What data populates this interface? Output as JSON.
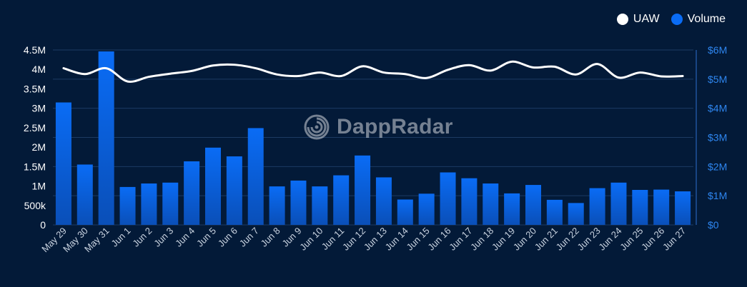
{
  "chart_data": {
    "type": "bar",
    "title": "",
    "categories": [
      "May 29",
      "May 30",
      "May 31",
      "Jun 1",
      "Jun 2",
      "Jun 3",
      "Jun 4",
      "Jun 5",
      "Jun 6",
      "Jun 7",
      "Jun 8",
      "Jun 9",
      "Jun 10",
      "Jun 11",
      "Jun 12",
      "Jun 13",
      "Jun 14",
      "Jun 15",
      "Jun 16",
      "Jun 17",
      "Jun 18",
      "Jun 19",
      "Jun 20",
      "Jun 21",
      "Jun 22",
      "Jun 23",
      "Jun 24",
      "Jun 25",
      "Jun 26",
      "Jun 27"
    ],
    "series": [
      {
        "name": "Volume",
        "type": "bar",
        "axis": "right",
        "color": "#0a6cf5",
        "values": [
          4.2,
          2.07,
          5.95,
          1.3,
          1.42,
          1.45,
          2.18,
          2.65,
          2.35,
          3.32,
          1.32,
          1.52,
          1.32,
          1.7,
          2.38,
          1.63,
          0.87,
          1.07,
          1.8,
          1.6,
          1.42,
          1.08,
          1.37,
          0.86,
          0.75,
          1.26,
          1.45,
          1.2,
          1.21,
          1.15
        ]
      },
      {
        "name": "UAW",
        "type": "line",
        "axis": "left",
        "color": "#ffffff",
        "values": [
          4.03,
          3.88,
          4.03,
          3.69,
          3.81,
          3.89,
          3.96,
          4.1,
          4.12,
          4.03,
          3.87,
          3.83,
          3.92,
          3.83,
          4.08,
          3.92,
          3.88,
          3.78,
          3.99,
          4.11,
          3.97,
          4.2,
          4.05,
          4.07,
          3.87,
          4.14,
          3.79,
          3.92,
          3.82,
          3.83
        ]
      }
    ],
    "y_left": {
      "range": [
        0,
        4.5
      ],
      "ticks": [
        0,
        0.5,
        1,
        1.5,
        2,
        2.5,
        3,
        3.5,
        4,
        4.5
      ],
      "tick_labels": [
        "0",
        "500k",
        "1M",
        "1.5M",
        "2M",
        "2.5M",
        "3M",
        "3.5M",
        "4M",
        "4.5M"
      ]
    },
    "y_right": {
      "range": [
        0,
        6
      ],
      "ticks": [
        0,
        1,
        2,
        3,
        4,
        5,
        6
      ],
      "tick_labels": [
        "$0",
        "$1M",
        "$2M",
        "$3M",
        "$4M",
        "$5M",
        "$6M"
      ]
    },
    "grid": true,
    "legend": {
      "position": "top-right",
      "entries": [
        "UAW",
        "Volume"
      ]
    }
  },
  "legend": {
    "uaw_label": "UAW",
    "uaw_color": "#ffffff",
    "volume_label": "Volume",
    "volume_color": "#0a6cf5"
  },
  "watermark": {
    "text": "DappRadar"
  }
}
